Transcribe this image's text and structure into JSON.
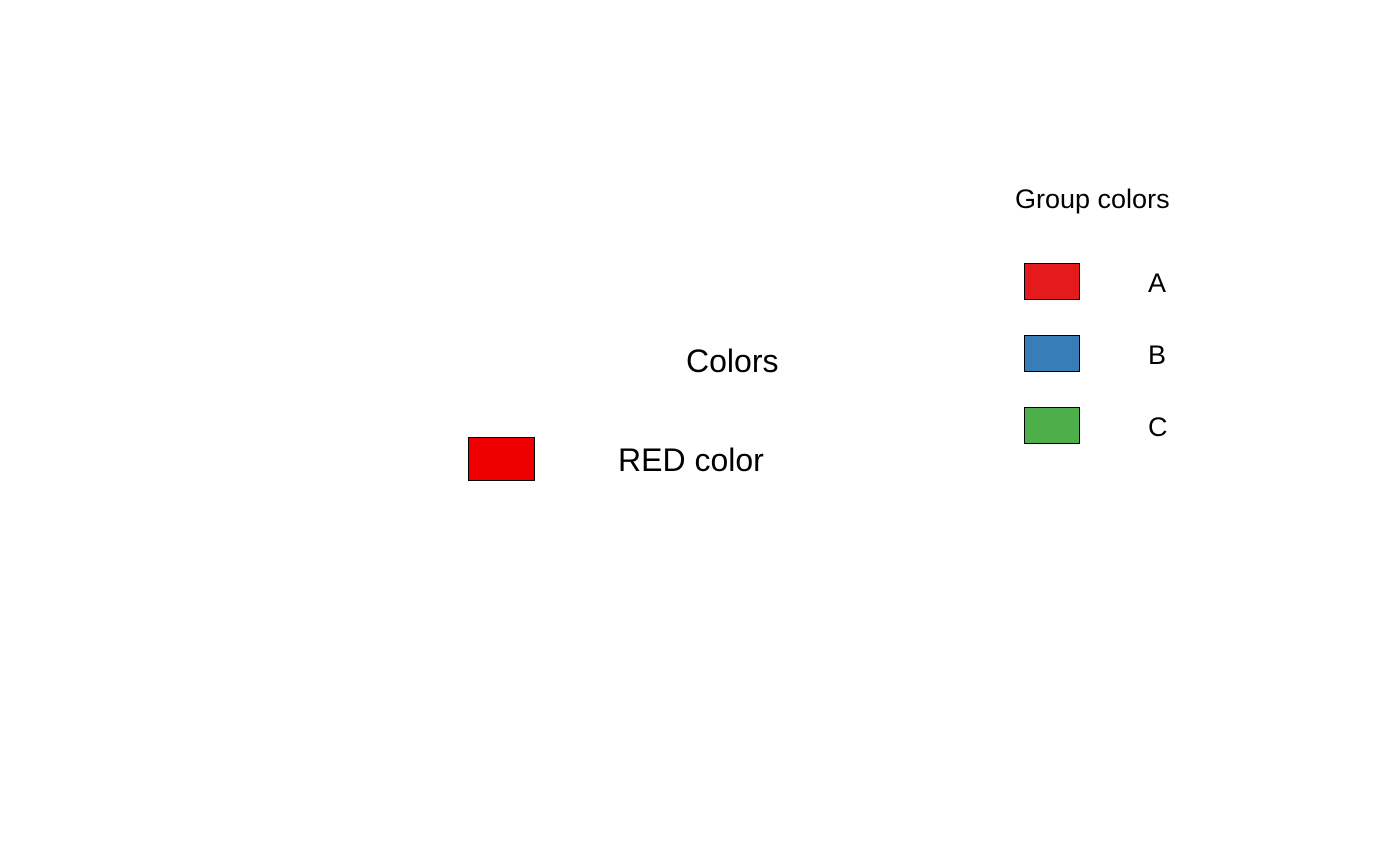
{
  "legend_colors": {
    "title": "Colors",
    "items": [
      {
        "label": "RED color",
        "color": "#EE0000"
      }
    ]
  },
  "legend_groups": {
    "title": "Group colors",
    "items": [
      {
        "label": "A",
        "color": "#E41A1C"
      },
      {
        "label": "B",
        "color": "#377EB8"
      },
      {
        "label": "C",
        "color": "#4DAF4A"
      }
    ]
  }
}
